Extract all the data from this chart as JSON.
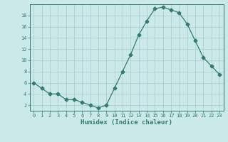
{
  "x": [
    0,
    1,
    2,
    3,
    4,
    5,
    6,
    7,
    8,
    9,
    10,
    11,
    12,
    13,
    14,
    15,
    16,
    17,
    18,
    19,
    20,
    21,
    22,
    23
  ],
  "y": [
    6,
    5,
    4,
    4,
    3,
    3,
    2.5,
    2,
    1.5,
    2,
    5,
    8,
    11,
    14.5,
    17,
    19.2,
    19.5,
    19,
    18.5,
    16.5,
    13.5,
    10.5,
    9,
    7.5
  ],
  "line_color": "#2e7d6e",
  "marker": "D",
  "marker_size": 2.5,
  "bg_color": "#cce9e9",
  "grid_color": "#aed0d0",
  "xlabel": "Humidex (Indice chaleur)",
  "xlabel_fontsize": 6.5,
  "tick_fontsize": 5.0,
  "tick_color": "#2e7d6e",
  "axis_label_color": "#2e7d6e",
  "xlim": [
    -0.5,
    23.5
  ],
  "ylim": [
    1,
    20
  ],
  "yticks": [
    2,
    4,
    6,
    8,
    10,
    12,
    14,
    16,
    18
  ],
  "xticks": [
    0,
    1,
    2,
    3,
    4,
    5,
    6,
    7,
    8,
    9,
    10,
    11,
    12,
    13,
    14,
    15,
    16,
    17,
    18,
    19,
    20,
    21,
    22,
    23
  ]
}
